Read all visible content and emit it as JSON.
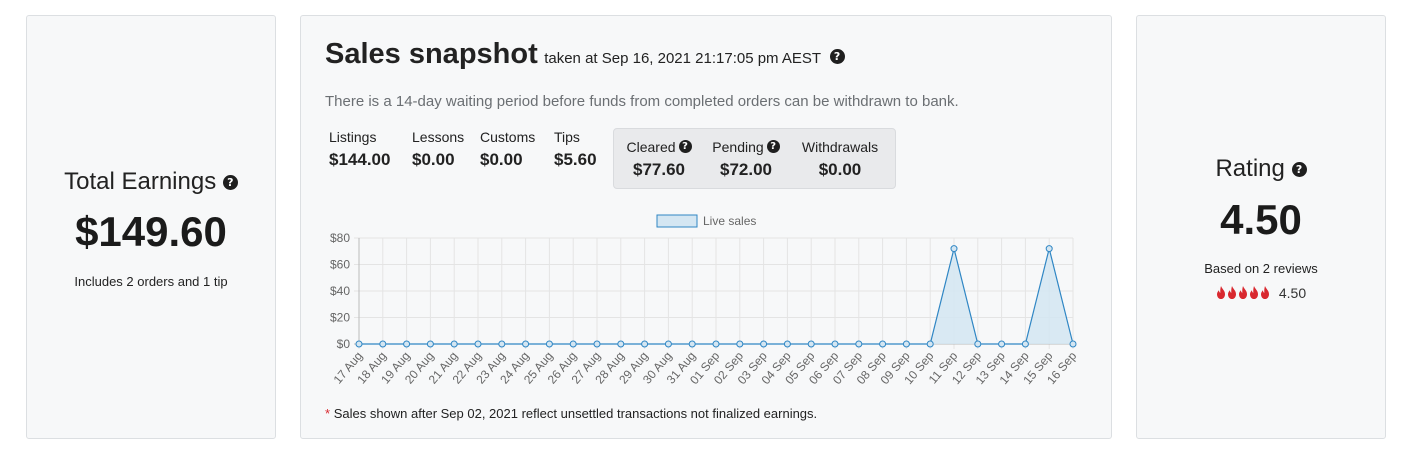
{
  "earnings": {
    "title": "Total Earnings",
    "amount": "$149.60",
    "subtitle": "Includes 2 orders and 1 tip"
  },
  "rating": {
    "title": "Rating",
    "value": "4.50",
    "subtitle": "Based on 2 reviews",
    "stars_value": "4.50",
    "stars_count": 5,
    "flame_color": "#d9282f"
  },
  "sales": {
    "title": "Sales snapshot",
    "taken_at": "taken at Sep 16, 2021 21:17:05 pm AEST",
    "notice": "There is a 14-day waiting period before funds from completed orders can be withdrawn to bank.",
    "stats": [
      {
        "label": "Listings",
        "value": "$144.00"
      },
      {
        "label": "Lessons",
        "value": "$0.00"
      },
      {
        "label": "Customs",
        "value": "$0.00"
      },
      {
        "label": "Tips",
        "value": "$5.60"
      }
    ],
    "box_stats": [
      {
        "label": "Cleared",
        "value": "$77.60"
      },
      {
        "label": "Pending",
        "value": "$72.00"
      },
      {
        "label": "Withdrawals",
        "value": "$0.00"
      }
    ],
    "footnote_mark": "*",
    "footnote": "Sales shown after Sep 02, 2021 reflect unsettled transactions not finalized earnings."
  },
  "chart_data": {
    "type": "area",
    "legend": "Live sales",
    "legend_position": "top",
    "categories": [
      "17 Aug",
      "18 Aug",
      "19 Aug",
      "20 Aug",
      "21 Aug",
      "22 Aug",
      "23 Aug",
      "24 Aug",
      "25 Aug",
      "26 Aug",
      "27 Aug",
      "28 Aug",
      "29 Aug",
      "30 Aug",
      "31 Aug",
      "01 Sep",
      "02 Sep",
      "03 Sep",
      "04 Sep",
      "05 Sep",
      "06 Sep",
      "07 Sep",
      "08 Sep",
      "09 Sep",
      "10 Sep",
      "11 Sep",
      "12 Sep",
      "13 Sep",
      "14 Sep",
      "15 Sep",
      "16 Sep"
    ],
    "series": [
      {
        "name": "Live sales",
        "values": [
          0,
          0,
          0,
          0,
          0,
          0,
          0,
          0,
          0,
          0,
          0,
          0,
          0,
          0,
          0,
          0,
          0,
          0,
          0,
          0,
          0,
          0,
          0,
          0,
          0,
          72,
          0,
          0,
          0,
          72,
          0
        ]
      }
    ],
    "yticks": [
      "$0",
      "$20",
      "$40",
      "$60",
      "$80"
    ],
    "ylim": [
      0,
      80
    ],
    "grid": true,
    "line_color": "#2f86c4",
    "fill_color": "#d4e6f2"
  },
  "icons": {
    "help": "?"
  }
}
